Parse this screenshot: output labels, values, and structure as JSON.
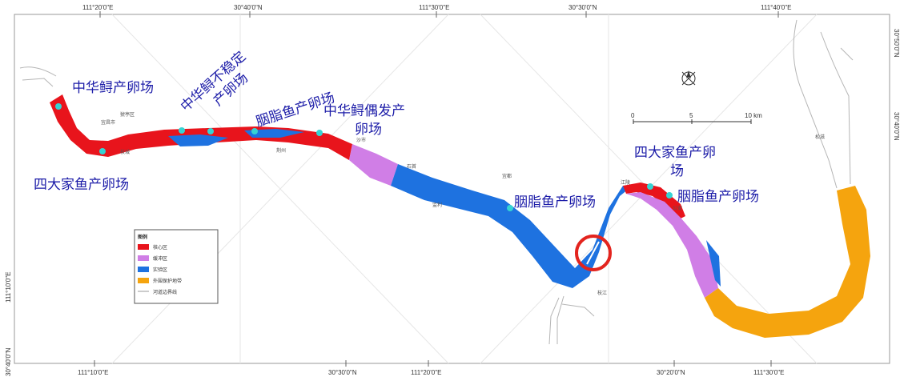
{
  "colors": {
    "core": "#e8141c",
    "buffer": "#d07ee6",
    "experimental": "#1e72e0",
    "external": "#f5a40e",
    "spawn_dot": "#36d3d3",
    "label": "#1c1ca8",
    "marker": "#e3241e"
  },
  "ticks": {
    "top": [
      "111°20'0\"E",
      "30°40'0\"N",
      "111°30'0\"E",
      "30°30'0\"N",
      "111°40'0\"E"
    ],
    "bottom": [
      "111°10'0\"E",
      "30°30'0\"N",
      "111°20'0\"E",
      "30°20'0\"N",
      "111°30'0\"E"
    ],
    "left": [
      "111°10'0\"E",
      "30°40'0\"N"
    ],
    "right": [
      "30°50'0\"N",
      "30°40'0\"N"
    ]
  },
  "labels": {
    "sturgeon_spawn": "中华鲟产卵场",
    "sturgeon_unstable_1": "中华鲟不稳定",
    "sturgeon_unstable_2": "产卵场",
    "paddlefish_1": "胭脂鱼产卵场",
    "sturgeon_occasional_1": "中华鲟偶发产",
    "sturgeon_occasional_2": "卵场",
    "four_carps_1": "四大家鱼产卵场",
    "paddlefish_2": "胭脂鱼产卵场",
    "four_carps_2a": "四大家鱼产卵",
    "four_carps_2b": "场",
    "paddlefish_3": "胭脂鱼产卵场"
  },
  "scale": [
    "0",
    "5",
    "10 km"
  ],
  "legend": {
    "title": "图例",
    "items": [
      "核心区",
      "缓冲区",
      "实验区",
      "外围保护地带",
      "河道边界线"
    ]
  },
  "places": [
    "宜昌市",
    "猇亭区",
    "枝城",
    "荆州",
    "沙市",
    "石首",
    "监利",
    "宜都",
    "枝江",
    "江陵",
    "公安",
    "松滋"
  ]
}
